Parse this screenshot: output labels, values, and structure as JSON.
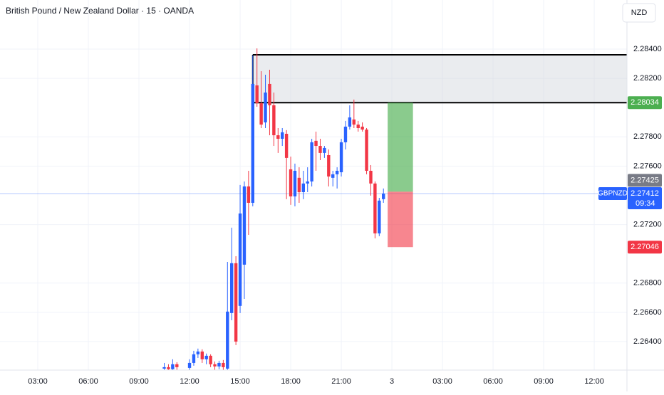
{
  "chart_data": {
    "type": "candlestick",
    "title": "British Pound / New Zealand Dollar · 15 · OANDA",
    "currency": "NZD",
    "symbol": "GBPNZD",
    "countdown": "09:34",
    "last_price": 2.27412,
    "up_color": "#2962ff",
    "down_color": "#f23645",
    "xlim": [
      0.76,
      37.94
    ],
    "xticks": [
      {
        "value": 3,
        "label": "03:00"
      },
      {
        "value": 6,
        "label": "06:00"
      },
      {
        "value": 9,
        "label": "09:00"
      },
      {
        "value": 12,
        "label": "12:00"
      },
      {
        "value": 15,
        "label": "15:00"
      },
      {
        "value": 18,
        "label": "18:00"
      },
      {
        "value": 21,
        "label": "21:00"
      },
      {
        "value": 24,
        "label": "3"
      },
      {
        "value": 27,
        "label": "03:00"
      },
      {
        "value": 30,
        "label": "06:00"
      },
      {
        "value": 33,
        "label": "09:00"
      },
      {
        "value": 36,
        "label": "12:00"
      }
    ],
    "ylim": [
      2.26205,
      2.28736
    ],
    "yticks": [
      {
        "value": 2.264,
        "label": "2.26400"
      },
      {
        "value": 2.266,
        "label": "2.26600"
      },
      {
        "value": 2.268,
        "label": "2.26800"
      },
      {
        "value": 2.272,
        "label": "2.27200"
      },
      {
        "value": 2.276,
        "label": "2.27600"
      },
      {
        "value": 2.278,
        "label": "2.27800"
      },
      {
        "value": 2.282,
        "label": "2.28200"
      },
      {
        "value": 2.284,
        "label": "2.28400"
      }
    ],
    "grid": true,
    "x": [
      10.5,
      10.75,
      11,
      11.25,
      12,
      12.25,
      12.5,
      12.75,
      13,
      13.25,
      13.5,
      13.75,
      14,
      14.25,
      14.5,
      14.75,
      15,
      15.25,
      15.5,
      15.75,
      16,
      16.25,
      16.5,
      16.75,
      17,
      17.25,
      17.5,
      17.75,
      18,
      18.25,
      18.5,
      18.75,
      19,
      19.25,
      19.5,
      19.75,
      20,
      20.25,
      20.5,
      20.75,
      21,
      21.25,
      21.5,
      21.75,
      22,
      22.25,
      22.5,
      22.75,
      23,
      23.25,
      23.5
    ],
    "open": [
      2.26215,
      2.26225,
      2.26211,
      2.26245,
      2.2622,
      2.26254,
      2.26313,
      2.26332,
      2.26279,
      2.26303,
      2.26245,
      2.2623,
      2.26254,
      2.26215,
      2.26595,
      2.26936,
      2.26644,
      2.26926,
      2.27461,
      2.27349,
      2.28152,
      2.2803,
      2.27899,
      2.28162,
      2.28016,
      2.27811,
      2.27787,
      2.27821,
      2.27578,
      2.27393,
      2.2752,
      2.27422,
      2.27481,
      2.27495,
      2.27773,
      2.27738,
      2.2769,
      2.27675,
      2.2752,
      2.27544,
      2.27558,
      2.27763,
      2.2787,
      2.27919,
      2.27884,
      2.2787,
      2.2785,
      2.27568,
      2.27481,
      2.2714,
      2.27374
    ],
    "high": [
      2.26254,
      2.26245,
      2.26279,
      2.26259,
      2.26279,
      2.26337,
      2.26352,
      2.26347,
      2.26318,
      2.26313,
      2.26264,
      2.26269,
      2.26274,
      2.26945,
      2.27179,
      2.26984,
      2.27471,
      2.27495,
      2.27568,
      2.28357,
      2.28405,
      2.28249,
      2.28225,
      2.28259,
      2.28103,
      2.2786,
      2.2786,
      2.27846,
      2.27665,
      2.27617,
      2.27592,
      2.27568,
      2.27592,
      2.27787,
      2.27836,
      2.27787,
      2.27738,
      2.27714,
      2.27568,
      2.27592,
      2.27787,
      2.27909,
      2.28016,
      2.28055,
      2.27909,
      2.27899,
      2.2786,
      2.27607,
      2.27495,
      2.27383,
      2.27447
    ],
    "low": [
      2.26206,
      2.26206,
      2.26206,
      2.26206,
      2.26206,
      2.26235,
      2.26288,
      2.26254,
      2.26245,
      2.26225,
      2.26206,
      2.26211,
      2.26206,
      2.26206,
      2.26546,
      2.26376,
      2.26595,
      2.26692,
      2.2713,
      2.27325,
      2.28006,
      2.2786,
      2.2786,
      2.27811,
      2.27738,
      2.2769,
      2.27738,
      2.27374,
      2.27335,
      2.27325,
      2.27349,
      2.27374,
      2.27422,
      2.27461,
      2.27568,
      2.27641,
      2.27656,
      2.27461,
      2.27461,
      2.27447,
      2.27529,
      2.27714,
      2.2785,
      2.2786,
      2.27836,
      2.27836,
      2.27544,
      2.27398,
      2.27106,
      2.27121,
      2.27349
    ],
    "close": [
      2.26225,
      2.26211,
      2.26245,
      2.26225,
      2.26254,
      2.26313,
      2.26332,
      2.26279,
      2.26303,
      2.26245,
      2.2623,
      2.26254,
      2.26225,
      2.26605,
      2.26936,
      2.264,
      2.27276,
      2.27461,
      2.27349,
      2.28162,
      2.2803,
      2.27884,
      2.28103,
      2.28016,
      2.27811,
      2.27787,
      2.27831,
      2.27656,
      2.27393,
      2.27568,
      2.27422,
      2.27481,
      2.27495,
      2.27763,
      2.27738,
      2.2769,
      2.27724,
      2.27529,
      2.27544,
      2.27568,
      2.27763,
      2.2787,
      2.27933,
      2.27884,
      2.2786,
      2.2785,
      2.27568,
      2.27481,
      2.2714,
      2.27364,
      2.27412
    ],
    "zone": {
      "top": 2.28361,
      "bottom": 2.28034,
      "x_start": 15.75,
      "color": "#d1d4dc"
    },
    "position": {
      "entry": 2.27425,
      "target": 2.28034,
      "stop": 2.27046,
      "x_start": 23.75,
      "x_end": 25.25,
      "target_color": "#4caf50",
      "stop_color": "#f23645",
      "entry_color": "#787b86"
    }
  }
}
